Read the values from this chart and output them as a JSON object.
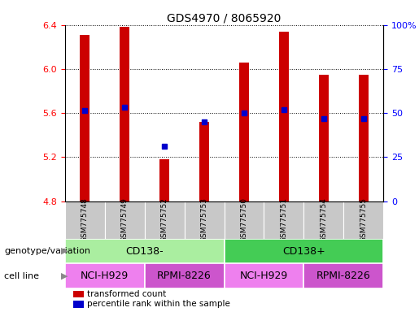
{
  "title": "GDS4970 / 8065920",
  "samples": [
    "GSM775748",
    "GSM775749",
    "GSM775752",
    "GSM775753",
    "GSM775750",
    "GSM775751",
    "GSM775754",
    "GSM775755"
  ],
  "bar_values": [
    6.31,
    6.38,
    5.18,
    5.52,
    6.06,
    6.34,
    5.95,
    5.95
  ],
  "percentile_values": [
    5.62,
    5.65,
    5.3,
    5.52,
    5.6,
    5.63,
    5.55,
    5.55
  ],
  "bar_base": 4.8,
  "ylim": [
    4.8,
    6.4
  ],
  "yticks_left": [
    4.8,
    5.2,
    5.6,
    6.0,
    6.4
  ],
  "right_yticks": [
    0,
    25,
    50,
    75,
    100
  ],
  "right_ytick_labels": [
    "0",
    "25",
    "50",
    "75",
    "100%"
  ],
  "bar_color": "#cc0000",
  "percentile_color": "#0000cc",
  "sample_bg": "#c8c8c8",
  "genotype_groups": [
    {
      "label": "CD138-",
      "start": 0,
      "end": 4,
      "color": "#aaeea0"
    },
    {
      "label": "CD138+",
      "start": 4,
      "end": 8,
      "color": "#44cc55"
    }
  ],
  "cell_line_groups": [
    {
      "label": "NCI-H929",
      "start": 0,
      "end": 2,
      "color": "#ee80ee"
    },
    {
      "label": "RPMI-8226",
      "start": 2,
      "end": 4,
      "color": "#cc55cc"
    },
    {
      "label": "NCI-H929",
      "start": 4,
      "end": 6,
      "color": "#ee80ee"
    },
    {
      "label": "RPMI-8226",
      "start": 6,
      "end": 8,
      "color": "#cc55cc"
    }
  ],
  "legend_items": [
    {
      "label": "transformed count",
      "color": "#cc0000"
    },
    {
      "label": "percentile rank within the sample",
      "color": "#0000cc"
    }
  ],
  "genotype_label": "genotype/variation",
  "cell_line_label": "cell line",
  "bar_width": 0.25
}
